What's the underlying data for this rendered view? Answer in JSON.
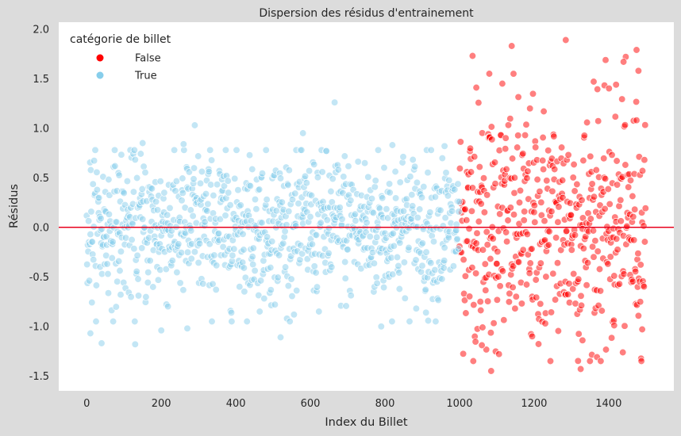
{
  "chart_data": {
    "type": "scatter",
    "title": "Dispersion des résidus d'entrainement",
    "xlabel": "Index du Billet",
    "ylabel": "Résidus",
    "xlim": [
      -75,
      1575
    ],
    "ylim": [
      -1.65,
      2.07
    ],
    "xticks": [
      "0",
      "200",
      "400",
      "600",
      "800",
      "1000",
      "1200",
      "1400"
    ],
    "xtick_values": [
      0,
      200,
      400,
      600,
      800,
      1000,
      1200,
      1400
    ],
    "yticks": [
      "-1.5",
      "-1.0",
      "-0.5",
      "0.0",
      "0.5",
      "1.0",
      "1.5",
      "2.0"
    ],
    "ytick_values": [
      -1.5,
      -1.0,
      -0.5,
      0.0,
      0.5,
      1.0,
      1.5,
      2.0
    ],
    "grid": false,
    "reference_line": {
      "y": 0,
      "color": "#e8001c"
    },
    "legend": {
      "title": "catégorie de billet",
      "position": "top-left",
      "entries": [
        {
          "label": "False",
          "color": "#ff0000"
        },
        {
          "label": "True",
          "color": "#87ceeb"
        }
      ]
    },
    "series": [
      {
        "name": "True",
        "color": "#87ceeb",
        "x_range": [
          0,
          999
        ],
        "n_points": 1000,
        "highlights": [
          {
            "x": 665,
            "y": 1.26
          },
          {
            "x": 290,
            "y": 1.03
          },
          {
            "x": 580,
            "y": 0.95
          },
          {
            "x": 150,
            "y": 0.85
          },
          {
            "x": 260,
            "y": 0.84
          },
          {
            "x": 820,
            "y": 0.83
          },
          {
            "x": 960,
            "y": 0.82
          },
          {
            "x": 10,
            "y": -1.07
          },
          {
            "x": 40,
            "y": -1.17
          },
          {
            "x": 130,
            "y": -1.18
          },
          {
            "x": 520,
            "y": -1.11
          },
          {
            "x": 790,
            "y": -1.0
          },
          {
            "x": 200,
            "y": -1.04
          },
          {
            "x": 270,
            "y": -1.02
          },
          {
            "x": 910,
            "y": -0.86
          }
        ]
      },
      {
        "name": "False",
        "color": "#ff0000",
        "x_range": [
          1000,
          1499
        ],
        "n_points": 500,
        "highlights": [
          {
            "x": 1285,
            "y": 1.89
          },
          {
            "x": 1140,
            "y": 1.83
          },
          {
            "x": 1475,
            "y": 1.79
          },
          {
            "x": 1035,
            "y": 1.73
          },
          {
            "x": 1440,
            "y": 1.67
          },
          {
            "x": 1480,
            "y": 1.58
          },
          {
            "x": 1080,
            "y": 1.55
          },
          {
            "x": 1360,
            "y": 1.47
          },
          {
            "x": 1115,
            "y": 1.45
          },
          {
            "x": 1045,
            "y": 1.41
          },
          {
            "x": 1420,
            "y": 1.44
          },
          {
            "x": 1085,
            "y": -1.45
          },
          {
            "x": 1325,
            "y": -1.43
          },
          {
            "x": 1060,
            "y": -1.19
          },
          {
            "x": 1330,
            "y": -1.14
          },
          {
            "x": 1195,
            "y": -1.1
          },
          {
            "x": 1490,
            "y": -1.03
          },
          {
            "x": 1415,
            "y": -0.99
          }
        ]
      }
    ]
  }
}
